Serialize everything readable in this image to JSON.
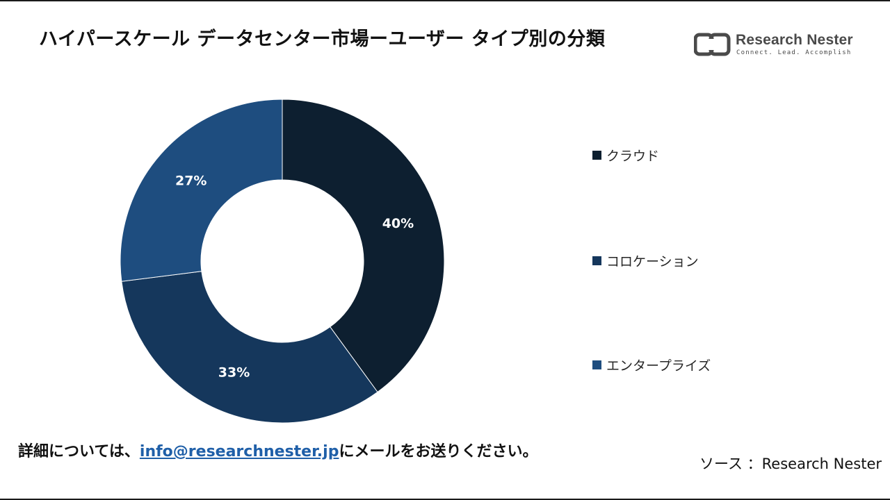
{
  "title": "ハイパースケール データセンター市場ーユーザー タイプ別の分類",
  "logo": {
    "name": "Research Nester",
    "tagline": "Connect. Lead. Accomplish"
  },
  "chart_data": {
    "type": "pie",
    "variant": "donut",
    "start_angle_deg": 0,
    "direction": "clockwise",
    "slices": [
      {
        "label": "クラウド",
        "value": 40,
        "display": "40%",
        "color": "#0d1f30"
      },
      {
        "label": "コロケーション",
        "value": 33,
        "display": "33%",
        "color": "#15375c"
      },
      {
        "label": "エンタープライズ",
        "value": 27,
        "display": "27%",
        "color": "#1e4d7f"
      }
    ],
    "legend_position": "right"
  },
  "footer": {
    "prefix": "詳細については、",
    "email": "info@researchnester.jp",
    "suffix": "にメールをお送りください。"
  },
  "source": "ソース ：Research Nester"
}
